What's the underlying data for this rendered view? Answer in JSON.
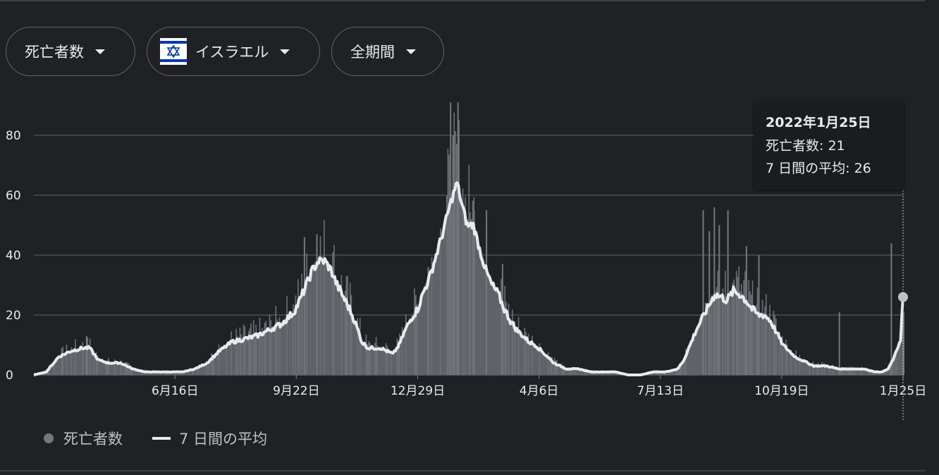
{
  "controls": {
    "metric": "死亡者数",
    "country": "イスラエル",
    "period": "全期間",
    "colors": {
      "flag_blue": "#0038b8",
      "flag_white": "#ffffff"
    }
  },
  "tooltip": {
    "date": "2022年1月25日",
    "deaths_line": "死亡者数: 21",
    "avg_line": "7 日間の平均: 26"
  },
  "legend": {
    "deaths": "死亡者数",
    "avg": "7 日間の平均"
  },
  "chart_data": {
    "type": "bar",
    "title": "",
    "xlabel": "",
    "ylabel": "",
    "ylim": [
      0,
      92
    ],
    "yticks": [
      0,
      20,
      40,
      60,
      80
    ],
    "grid": true,
    "legend_placement": "bottom-left",
    "x_tick_labels": [
      "6月16日",
      "9月22日",
      "12月29日",
      "4月6日",
      "7月13日",
      "10月19日",
      "1月25日"
    ],
    "x_tick_day_index": [
      114,
      212,
      310,
      408,
      506,
      604,
      702
    ],
    "day_count": 703,
    "colors": {
      "bars": "#5f6368",
      "average_line": "#e8eaed",
      "grid": "#5f6368"
    },
    "series": [
      {
        "name": "7 日間の平均",
        "style": "line",
        "points": [
          [
            0,
            0
          ],
          [
            10,
            1
          ],
          [
            20,
            6
          ],
          [
            30,
            8
          ],
          [
            40,
            9
          ],
          [
            45,
            9
          ],
          [
            52,
            5
          ],
          [
            60,
            4
          ],
          [
            70,
            4
          ],
          [
            75,
            3
          ],
          [
            80,
            2
          ],
          [
            90,
            1
          ],
          [
            100,
            1
          ],
          [
            110,
            1
          ],
          [
            120,
            1
          ],
          [
            130,
            2
          ],
          [
            140,
            4
          ],
          [
            150,
            8
          ],
          [
            160,
            11
          ],
          [
            170,
            12
          ],
          [
            180,
            13
          ],
          [
            190,
            15
          ],
          [
            200,
            17
          ],
          [
            210,
            21
          ],
          [
            215,
            25
          ],
          [
            220,
            30
          ],
          [
            225,
            35
          ],
          [
            230,
            38
          ],
          [
            235,
            38
          ],
          [
            240,
            35
          ],
          [
            245,
            30
          ],
          [
            250,
            26
          ],
          [
            255,
            22
          ],
          [
            260,
            17
          ],
          [
            265,
            11
          ],
          [
            270,
            9
          ],
          [
            280,
            9
          ],
          [
            285,
            8
          ],
          [
            290,
            7
          ],
          [
            295,
            10
          ],
          [
            300,
            15
          ],
          [
            305,
            19
          ],
          [
            310,
            22
          ],
          [
            315,
            28
          ],
          [
            320,
            33
          ],
          [
            325,
            40
          ],
          [
            330,
            47
          ],
          [
            335,
            55
          ],
          [
            340,
            62
          ],
          [
            342,
            64
          ],
          [
            345,
            58
          ],
          [
            350,
            50
          ],
          [
            355,
            50
          ],
          [
            360,
            42
          ],
          [
            365,
            35
          ],
          [
            370,
            30
          ],
          [
            375,
            27
          ],
          [
            380,
            22
          ],
          [
            385,
            18
          ],
          [
            390,
            15
          ],
          [
            395,
            13
          ],
          [
            400,
            11
          ],
          [
            405,
            10
          ],
          [
            410,
            8
          ],
          [
            415,
            6
          ],
          [
            420,
            4
          ],
          [
            430,
            2
          ],
          [
            440,
            2
          ],
          [
            450,
            1
          ],
          [
            460,
            1
          ],
          [
            470,
            1
          ],
          [
            480,
            0
          ],
          [
            490,
            0
          ],
          [
            500,
            1
          ],
          [
            510,
            1
          ],
          [
            520,
            2
          ],
          [
            525,
            5
          ],
          [
            530,
            10
          ],
          [
            535,
            15
          ],
          [
            540,
            19
          ],
          [
            545,
            23
          ],
          [
            550,
            27
          ],
          [
            555,
            26
          ],
          [
            560,
            25
          ],
          [
            565,
            28
          ],
          [
            570,
            27
          ],
          [
            575,
            25
          ],
          [
            580,
            22
          ],
          [
            585,
            20
          ],
          [
            590,
            20
          ],
          [
            595,
            18
          ],
          [
            600,
            14
          ],
          [
            605,
            10
          ],
          [
            610,
            8
          ],
          [
            615,
            6
          ],
          [
            620,
            5
          ],
          [
            630,
            3
          ],
          [
            640,
            3
          ],
          [
            650,
            2
          ],
          [
            660,
            2
          ],
          [
            670,
            2
          ],
          [
            680,
            1
          ],
          [
            685,
            1
          ],
          [
            690,
            2
          ],
          [
            695,
            6
          ],
          [
            700,
            12
          ],
          [
            702,
            26
          ]
        ]
      },
      {
        "name": "死亡者数",
        "style": "bars",
        "spikes": [
          [
            42,
            13
          ],
          [
            218,
            46
          ],
          [
            228,
            47
          ],
          [
            318,
            36
          ],
          [
            336,
            91
          ],
          [
            338,
            80
          ],
          [
            342,
            91
          ],
          [
            355,
            55
          ],
          [
            365,
            55
          ],
          [
            378,
            37
          ],
          [
            540,
            55
          ],
          [
            545,
            48
          ],
          [
            549,
            56
          ],
          [
            553,
            50
          ],
          [
            560,
            55
          ],
          [
            575,
            43
          ],
          [
            585,
            40
          ],
          [
            650,
            21
          ],
          [
            692,
            44
          ],
          [
            702,
            21
          ]
        ]
      }
    ]
  }
}
